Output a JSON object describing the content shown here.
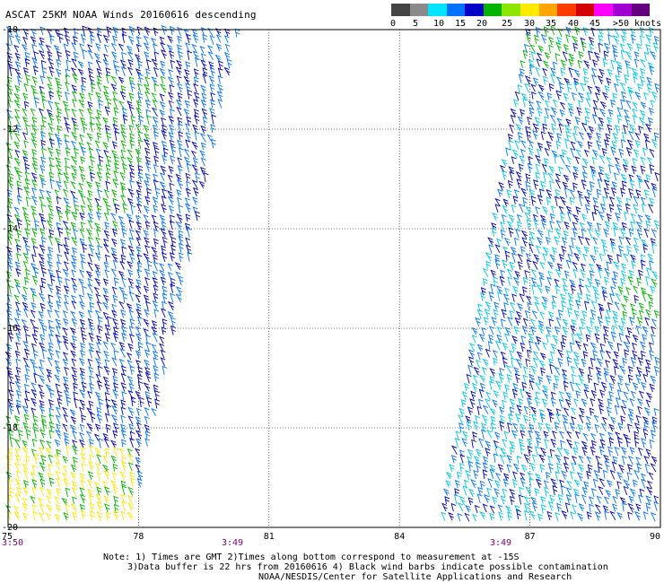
{
  "title": "ASCAT 25KM NOAA Winds 20160616 descending",
  "colorbar": {
    "colors": [
      "#444444",
      "#8a8a8a",
      "#00e5ff",
      "#0072ff",
      "#0000c8",
      "#00b400",
      "#8ce600",
      "#ffea00",
      "#ffa500",
      "#ff3c00",
      "#d20000",
      "#ff00ff",
      "#a000d2",
      "#64007e"
    ],
    "labels": [
      "0",
      "5",
      "10",
      "15",
      "20",
      "25",
      "30",
      "35",
      "40",
      "45",
      ">50 knots"
    ]
  },
  "axes": {
    "lon_ticks": [
      "75",
      "78",
      "81",
      "84",
      "87",
      "90"
    ],
    "lat_ticks": [
      "-10",
      "-12",
      "-14",
      "-16",
      "-18",
      "-20"
    ],
    "lon_range": [
      75,
      90
    ],
    "lat_range": [
      -10,
      -20
    ],
    "grid": "dotted"
  },
  "pass_times": [
    "3:50",
    "3:49",
    "3:49"
  ],
  "notes": [
    "Note: 1) Times are GMT 2)Times along bottom correspond to measurement at -15S",
    "3)Data buffer is 22 hrs from 20160616 4) Black wind barbs indicate possible contamination",
    "NOAA/NESDIS/Center for Satellite Applications and Research"
  ]
}
